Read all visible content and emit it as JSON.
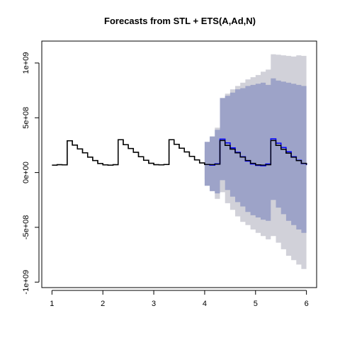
{
  "chart_data": {
    "type": "line",
    "title": "Forecasts from STL +  ETS(A,Ad,N)",
    "xlabel": "",
    "ylabel": "",
    "xlim": [
      0.8,
      6.2
    ],
    "ylim": [
      -1050000000.0,
      1200000000.0
    ],
    "x_ticks": [
      {
        "value": 1,
        "label": "1"
      },
      {
        "value": 2,
        "label": "2"
      },
      {
        "value": 3,
        "label": "3"
      },
      {
        "value": 4,
        "label": "4"
      },
      {
        "value": 5,
        "label": "5"
      },
      {
        "value": 6,
        "label": "6"
      }
    ],
    "y_ticks": [
      {
        "value": -1000000000,
        "label": "-1e+09"
      },
      {
        "value": -500000000,
        "label": "-5e+08"
      },
      {
        "value": 0,
        "label": "0e+00"
      },
      {
        "value": 500000000,
        "label": "5e+08"
      },
      {
        "value": 1000000000,
        "label": "1e+09"
      }
    ],
    "grid": false,
    "legend": "none",
    "colors": {
      "history": "#000000",
      "forecast_mean": "#0000ff",
      "interval_80": "#9da3c8",
      "interval_95": "#d1d1d9",
      "axis": "#000000"
    },
    "series": [
      {
        "role": "history",
        "x": [
          1.0,
          1.1,
          1.2,
          1.3,
          1.4,
          1.5,
          1.6,
          1.7,
          1.8,
          1.9,
          2.0,
          2.1,
          2.2,
          2.3,
          2.4,
          2.5,
          2.6,
          2.7,
          2.8,
          2.9,
          3.0,
          3.1,
          3.2,
          3.3,
          3.4,
          3.5,
          3.6,
          3.7,
          3.8,
          3.9,
          4.0,
          4.1,
          4.2,
          4.3,
          4.4,
          4.5,
          4.6,
          4.7,
          4.8,
          4.9,
          5.0,
          5.1,
          5.2,
          5.3,
          5.4,
          5.5,
          5.6,
          5.7,
          5.8,
          5.9,
          6.0
        ],
        "values": [
          68000000,
          72000000,
          70000000,
          290000000,
          250000000,
          215000000,
          180000000,
          140000000,
          110000000,
          82000000,
          70000000,
          68000000,
          72000000,
          300000000,
          255000000,
          220000000,
          185000000,
          145000000,
          112000000,
          85000000,
          72000000,
          70000000,
          74000000,
          300000000,
          258000000,
          222000000,
          188000000,
          148000000,
          115000000,
          88000000,
          74000000,
          72000000,
          76000000,
          292000000,
          248000000,
          214000000,
          180000000,
          142000000,
          110000000,
          84000000,
          70000000,
          68000000,
          72000000,
          292000000,
          248000000,
          212000000,
          178000000,
          140000000,
          110000000,
          84000000,
          70000000
        ]
      },
      {
        "role": "forecast_mean",
        "x": [
          4.0,
          4.1,
          4.2,
          4.3,
          4.4,
          4.5,
          4.6,
          4.7,
          4.8,
          4.9,
          5.0,
          5.1,
          5.2,
          5.3,
          5.4,
          5.5,
          5.6,
          5.7,
          5.8,
          5.9,
          6.0
        ],
        "values": [
          74000000,
          68000000,
          80000000,
          305000000,
          270000000,
          225000000,
          185000000,
          145000000,
          105000000,
          78000000,
          65000000,
          62000000,
          78000000,
          308000000,
          268000000,
          228000000,
          190000000,
          145000000,
          112000000,
          82000000,
          68000000
        ]
      }
    ],
    "intervals": [
      {
        "level": "80",
        "x": [
          4.0,
          4.1,
          4.2,
          4.3,
          4.4,
          4.5,
          4.6,
          4.7,
          4.8,
          4.9,
          5.0,
          5.1,
          5.2,
          5.3,
          5.4,
          5.5,
          5.6,
          5.7,
          5.8,
          5.9,
          6.0
        ],
        "lower": [
          -120000000,
          -170000000,
          -190000000,
          -70000000,
          -160000000,
          -220000000,
          -270000000,
          -310000000,
          -360000000,
          -390000000,
          -410000000,
          -430000000,
          -440000000,
          -250000000,
          -320000000,
          -380000000,
          -440000000,
          -480000000,
          -520000000,
          -550000000,
          -560000000
        ],
        "upper": [
          280000000,
          330000000,
          390000000,
          680000000,
          700000000,
          730000000,
          760000000,
          770000000,
          790000000,
          800000000,
          810000000,
          820000000,
          800000000,
          860000000,
          840000000,
          830000000,
          820000000,
          810000000,
          800000000,
          790000000,
          780000000
        ]
      },
      {
        "level": "95",
        "x": [
          4.0,
          4.1,
          4.2,
          4.3,
          4.4,
          4.5,
          4.6,
          4.7,
          4.8,
          4.9,
          5.0,
          5.1,
          5.2,
          5.3,
          5.4,
          5.5,
          5.6,
          5.7,
          5.8,
          5.9,
          6.0
        ],
        "lower": [
          -60000000,
          -150000000,
          -240000000,
          -180000000,
          -280000000,
          -340000000,
          -400000000,
          -450000000,
          -480000000,
          -520000000,
          -550000000,
          -580000000,
          -610000000,
          -580000000,
          -640000000,
          -700000000,
          -760000000,
          -800000000,
          -840000000,
          -880000000,
          -920000000
        ],
        "upper": [
          200000000,
          320000000,
          410000000,
          680000000,
          720000000,
          760000000,
          790000000,
          820000000,
          850000000,
          870000000,
          890000000,
          920000000,
          940000000,
          1080000000,
          1075000000,
          1070000000,
          1065000000,
          1060000000,
          1070000000,
          1065000000,
          1075000000
        ]
      }
    ]
  }
}
